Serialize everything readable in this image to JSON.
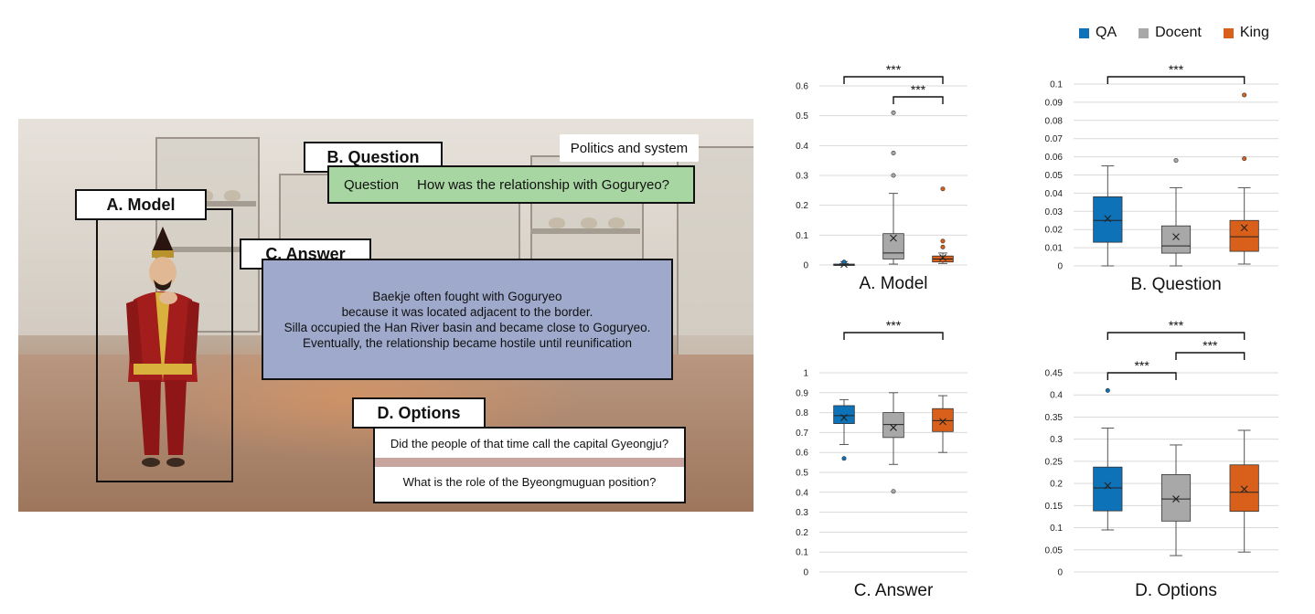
{
  "scene": {
    "model_label": "A. Model",
    "question_label": "B. Question",
    "answer_label": "C. Answer",
    "options_label": "D. Options",
    "topic": "Politics and system",
    "question_prefix": "Question",
    "question_text": "How was the relationship with Goguryeo?",
    "answer_lines": [
      "Baekje often fought with Goguryeo",
      "because it was located adjacent to the border.",
      "Silla occupied the Han River basin and became close to Goguryeo.",
      "Eventually, the relationship became hostile until reunification"
    ],
    "options": [
      "Did the people of that time call the capital Gyeongju?",
      "What is the role of the Byeongmuguan position?"
    ]
  },
  "legend": [
    {
      "name": "QA",
      "color": "#0d72b8"
    },
    {
      "name": "Docent",
      "color": "#a8a8a8"
    },
    {
      "name": "King",
      "color": "#d9601a"
    }
  ],
  "chart_data": [
    {
      "type": "box",
      "xlabel": "A. Model",
      "categories": [
        "QA",
        "Docent",
        "King"
      ],
      "ylim": [
        0,
        0.6
      ],
      "yticks": [
        "0",
        "0.1",
        "0.2",
        "0.3",
        "0.4",
        "0.5",
        "0.6"
      ],
      "boxes": [
        {
          "name": "QA",
          "min": 0,
          "q1": 0,
          "median": 0,
          "q3": 0.003,
          "max": 0.005,
          "mean": 0.002,
          "outliers": [
            0.01
          ]
        },
        {
          "name": "Docent",
          "min": 0.003,
          "q1": 0.02,
          "median": 0.04,
          "q3": 0.105,
          "max": 0.24,
          "mean": 0.09,
          "outliers": [
            0.3,
            0.375,
            0.51
          ]
        },
        {
          "name": "King",
          "min": 0.005,
          "q1": 0.01,
          "median": 0.02,
          "q3": 0.03,
          "max": 0.04,
          "mean": 0.025,
          "outliers": [
            0.06,
            0.08,
            0.255
          ]
        }
      ],
      "significance": [
        {
          "from": 0,
          "to": 2,
          "label": "***",
          "level": 0
        },
        {
          "from": 1,
          "to": 2,
          "label": "***",
          "level": 1
        }
      ]
    },
    {
      "type": "box",
      "xlabel": "B. Question",
      "categories": [
        "QA",
        "Docent",
        "King"
      ],
      "ylim": [
        0,
        0.1
      ],
      "yticks": [
        "0",
        "0.01",
        "0.02",
        "0.03",
        "0.04",
        "0.05",
        "0.06",
        "0.07",
        "0.08",
        "0.09",
        "0.1"
      ],
      "boxes": [
        {
          "name": "QA",
          "min": 0,
          "q1": 0.013,
          "median": 0.025,
          "q3": 0.038,
          "max": 0.055,
          "mean": 0.026,
          "outliers": []
        },
        {
          "name": "Docent",
          "min": 0,
          "q1": 0.007,
          "median": 0.011,
          "q3": 0.022,
          "max": 0.043,
          "mean": 0.016,
          "outliers": [
            0.058
          ]
        },
        {
          "name": "King",
          "min": 0.001,
          "q1": 0.008,
          "median": 0.016,
          "q3": 0.025,
          "max": 0.043,
          "mean": 0.021,
          "outliers": [
            0.059,
            0.094
          ]
        }
      ],
      "significance": [
        {
          "from": 0,
          "to": 2,
          "label": "***",
          "level": 0
        }
      ]
    },
    {
      "type": "box",
      "xlabel": "C. Answer",
      "categories": [
        "QA",
        "Docent",
        "King"
      ],
      "ylim": [
        0,
        1
      ],
      "yticks": [
        "0",
        "0.1",
        "0.2",
        "0.3",
        "0.4",
        "0.5",
        "0.6",
        "0.7",
        "0.8",
        "0.9",
        "1"
      ],
      "boxes": [
        {
          "name": "QA",
          "min": 0.64,
          "q1": 0.745,
          "median": 0.785,
          "q3": 0.835,
          "max": 0.865,
          "mean": 0.775,
          "outliers": [
            0.57
          ]
        },
        {
          "name": "Docent",
          "min": 0.54,
          "q1": 0.675,
          "median": 0.74,
          "q3": 0.8,
          "max": 0.9,
          "mean": 0.725,
          "outliers": [
            0.405
          ]
        },
        {
          "name": "King",
          "min": 0.6,
          "q1": 0.705,
          "median": 0.76,
          "q3": 0.82,
          "max": 0.885,
          "mean": 0.755,
          "outliers": []
        }
      ],
      "significance": [
        {
          "from": 0,
          "to": 2,
          "label": "***",
          "level": 0
        }
      ]
    },
    {
      "type": "box",
      "xlabel": "D. Options",
      "categories": [
        "QA",
        "Docent",
        "King"
      ],
      "ylim": [
        0,
        0.45
      ],
      "yticks": [
        "0",
        "0.05",
        "0.1",
        "0.15",
        "0.2",
        "0.25",
        "0.3",
        "0.35",
        "0.4",
        "0.45"
      ],
      "boxes": [
        {
          "name": "QA",
          "min": 0.095,
          "q1": 0.138,
          "median": 0.19,
          "q3": 0.237,
          "max": 0.325,
          "mean": 0.195,
          "outliers": [
            0.41
          ]
        },
        {
          "name": "Docent",
          "min": 0.037,
          "q1": 0.115,
          "median": 0.165,
          "q3": 0.22,
          "max": 0.287,
          "mean": 0.165,
          "outliers": []
        },
        {
          "name": "King",
          "min": 0.045,
          "q1": 0.137,
          "median": 0.18,
          "q3": 0.242,
          "max": 0.32,
          "mean": 0.187,
          "outliers": []
        }
      ],
      "significance": [
        {
          "from": 0,
          "to": 2,
          "label": "***",
          "level": 0
        },
        {
          "from": 0,
          "to": 1,
          "label": "***",
          "level": 2
        },
        {
          "from": 1,
          "to": 2,
          "label": "***",
          "level": 1
        }
      ]
    }
  ]
}
